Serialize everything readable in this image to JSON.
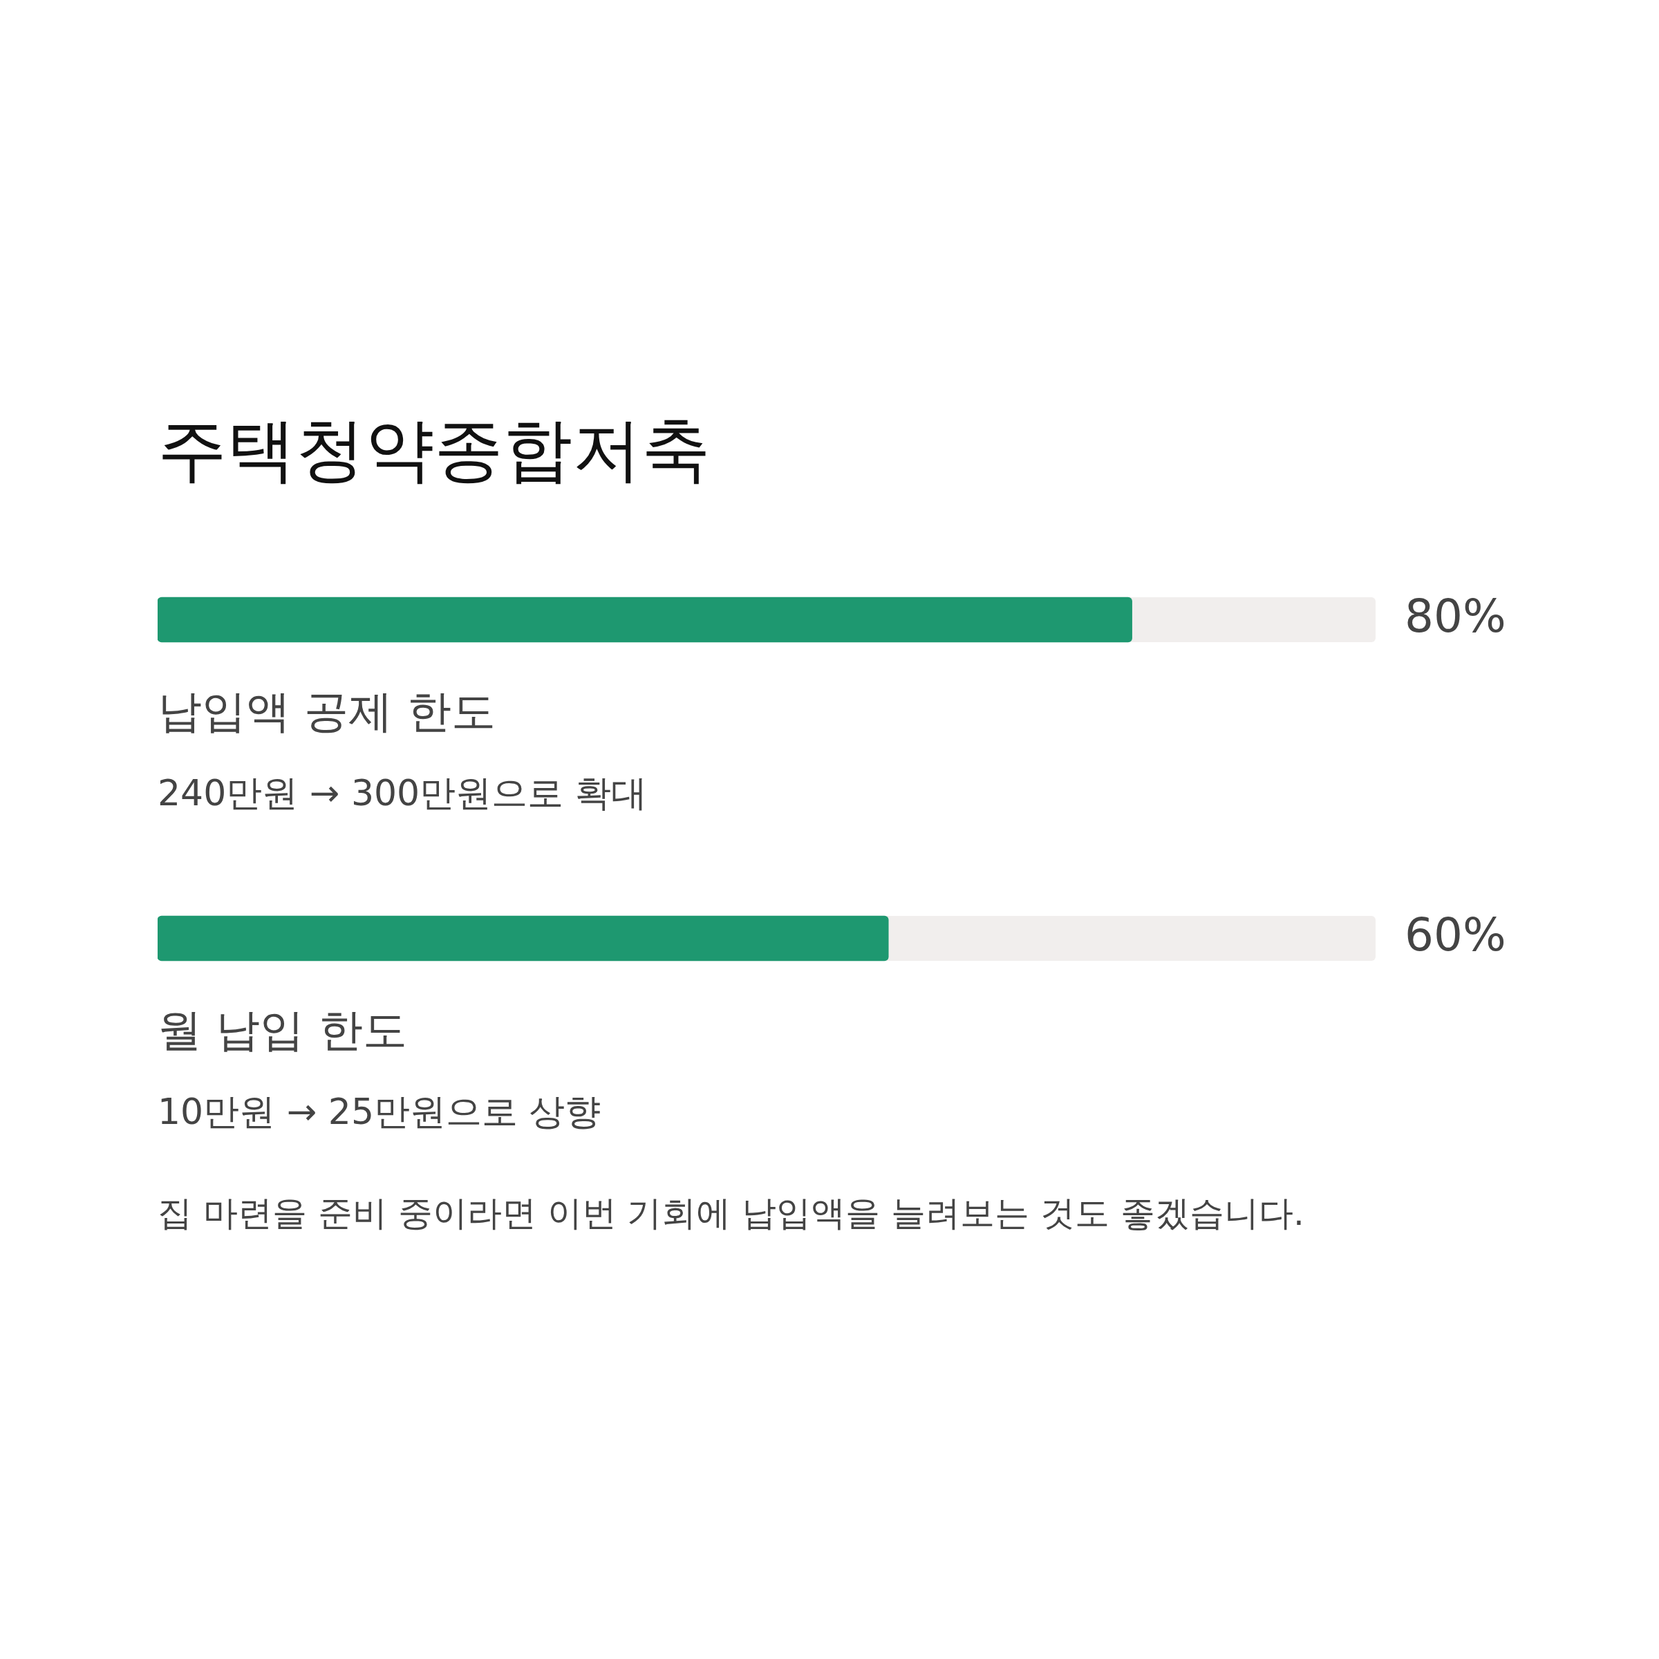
{
  "chart_data": {
    "type": "bar",
    "orientation": "horizontal",
    "title": "주택청약종합저축",
    "categories": [
      "납입액 공제 한도",
      "월 납입 한도"
    ],
    "values": [
      80,
      60
    ],
    "color": "#1e9870",
    "value_labels": [
      "80%",
      "60%"
    ],
    "xlim": [
      0,
      100
    ],
    "tick_labels": false,
    "annotations": [
      "240만원 → 300만원으로 확대",
      "10만원 → 25만원으로 상향",
      "집 마련을 준비 중이라면 이번 기회에 납입액을 늘려보는 것도 좋겠습니다."
    ]
  }
}
